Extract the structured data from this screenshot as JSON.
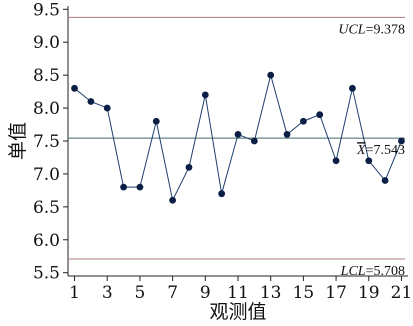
{
  "chart_data": {
    "type": "line",
    "title": "",
    "xlabel": "观测值",
    "ylabel": "单值",
    "xlim": [
      0.6,
      21.4
    ],
    "ylim": [
      5.45,
      9.55
    ],
    "xticks": [
      1,
      3,
      5,
      7,
      9,
      11,
      13,
      15,
      17,
      19,
      21
    ],
    "yticks": [
      5.5,
      6.0,
      6.5,
      7.0,
      7.5,
      8.0,
      8.5,
      9.0,
      9.5
    ],
    "ytick_labels": [
      "5.5",
      "6.0",
      "6.5",
      "7.0",
      "7.5",
      "8.0",
      "8.5",
      "9.0",
      "9.5"
    ],
    "grid": false,
    "series": [
      {
        "x": [
          1,
          2,
          3,
          4,
          5,
          6,
          7,
          8,
          9,
          10,
          11,
          12,
          13,
          14,
          15,
          16,
          17,
          18,
          19,
          20,
          21
        ],
        "values": [
          8.3,
          8.1,
          8.0,
          6.8,
          6.8,
          7.8,
          6.6,
          7.1,
          8.2,
          6.7,
          7.6,
          7.5,
          8.5,
          7.6,
          7.8,
          7.9,
          7.2,
          8.3,
          7.2,
          6.9,
          7.5
        ],
        "color": "#1f3f6e",
        "marker_color": "#0b1e45"
      }
    ],
    "reference_lines": [
      {
        "name": "UCL",
        "value": 9.378,
        "label_name": "UCL",
        "label_value": "=9.378",
        "color": "#a87d7d"
      },
      {
        "name": "X-bar",
        "value": 7.543,
        "label_name": "X",
        "label_value": "=7.543",
        "color": "#3f6a6a"
      },
      {
        "name": "LCL",
        "value": 5.708,
        "label_name": "LCL",
        "label_value": "=5.708",
        "color": "#a87d7d"
      }
    ]
  }
}
